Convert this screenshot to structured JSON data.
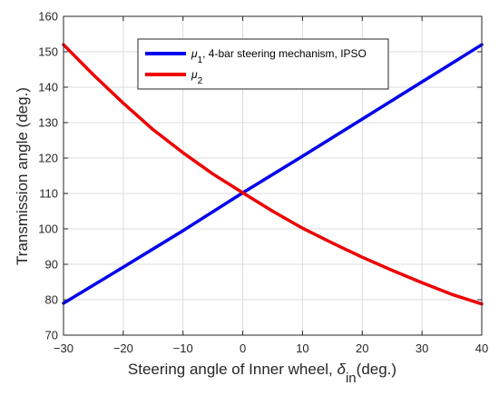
{
  "chart_data": {
    "type": "line",
    "xlabel": "Steering angle of Inner wheel, ",
    "xlabel_symbol": "δ",
    "xlabel_sub": "in",
    "xlabel_unit": "(deg.)",
    "ylabel": "Transmission angle (deg.)",
    "xlim": [
      -30,
      40
    ],
    "ylim": [
      70,
      160
    ],
    "xticks": [
      -30,
      -20,
      -10,
      0,
      10,
      20,
      30,
      40
    ],
    "xtick_labels": [
      "−30",
      "−20",
      "−10",
      "0",
      "10",
      "20",
      "30",
      "40"
    ],
    "yticks": [
      70,
      80,
      90,
      100,
      110,
      120,
      130,
      140,
      150,
      160
    ],
    "ytick_labels": [
      "70",
      "80",
      "90",
      "100",
      "110",
      "120",
      "130",
      "140",
      "150",
      "160"
    ],
    "grid": true,
    "legend_position": "top-right",
    "series": [
      {
        "symbol": "μ",
        "sub": "1",
        "name_rest": ", 4-bar steering mechanism, IPSO",
        "color": "#0000ee",
        "x": [
          -30,
          -20,
          -10,
          0,
          10,
          20,
          30,
          40
        ],
        "y": [
          79,
          89.2,
          99.5,
          110.2,
          120.5,
          131,
          141.5,
          152
        ]
      },
      {
        "symbol": "μ",
        "sub": "2",
        "name_rest": "",
        "color": "#ee0000",
        "x": [
          -30,
          -25,
          -20,
          -15,
          -10,
          -5,
          0,
          5,
          10,
          15,
          20,
          25,
          30,
          35,
          40
        ],
        "y": [
          152,
          143.5,
          135.5,
          128,
          121.5,
          115.5,
          110.2,
          105,
          100.2,
          96,
          92,
          88.3,
          84.8,
          81.5,
          78.8
        ]
      }
    ]
  }
}
